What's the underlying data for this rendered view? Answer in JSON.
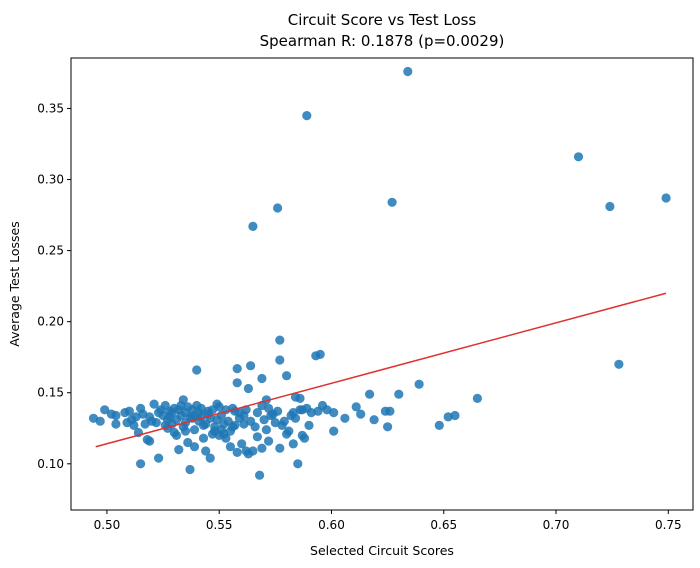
{
  "chart_data": {
    "type": "scatter",
    "title": "Circuit Score vs Test Loss",
    "subtitle": "Spearman R: 0.1878 (p=0.0029)",
    "xlabel": "Selected Circuit Scores",
    "ylabel": "Average Test Losses",
    "xlim": [
      0.484,
      0.761
    ],
    "ylim": [
      0.0675,
      0.3855
    ],
    "xticks": [
      0.5,
      0.55,
      0.6,
      0.65,
      0.7,
      0.75
    ],
    "xtick_labels": [
      "0.50",
      "0.55",
      "0.60",
      "0.65",
      "0.70",
      "0.75"
    ],
    "yticks": [
      0.1,
      0.15,
      0.2,
      0.25,
      0.3,
      0.35
    ],
    "ytick_labels": [
      "0.10",
      "0.15",
      "0.20",
      "0.25",
      "0.30",
      "0.35"
    ],
    "grid": false,
    "point_color": "#1f77b4",
    "trend_color": "#e03131",
    "trend_line": {
      "x": [
        0.495,
        0.749
      ],
      "y": [
        0.112,
        0.22
      ]
    },
    "series": [
      {
        "points": [
          [
            0.634,
            0.376
          ],
          [
            0.589,
            0.345
          ],
          [
            0.71,
            0.316
          ],
          [
            0.749,
            0.287
          ],
          [
            0.627,
            0.284
          ],
          [
            0.724,
            0.281
          ],
          [
            0.576,
            0.28
          ],
          [
            0.565,
            0.267
          ],
          [
            0.577,
            0.187
          ],
          [
            0.595,
            0.177
          ],
          [
            0.593,
            0.176
          ],
          [
            0.577,
            0.173
          ],
          [
            0.728,
            0.17
          ],
          [
            0.564,
            0.169
          ],
          [
            0.558,
            0.167
          ],
          [
            0.54,
            0.166
          ],
          [
            0.58,
            0.162
          ],
          [
            0.639,
            0.156
          ],
          [
            0.569,
            0.16
          ],
          [
            0.558,
            0.157
          ],
          [
            0.563,
            0.153
          ],
          [
            0.617,
            0.149
          ],
          [
            0.63,
            0.149
          ],
          [
            0.584,
            0.147
          ],
          [
            0.665,
            0.146
          ],
          [
            0.571,
            0.145
          ],
          [
            0.586,
            0.146
          ],
          [
            0.534,
            0.145
          ],
          [
            0.521,
            0.142
          ],
          [
            0.549,
            0.142
          ],
          [
            0.569,
            0.141
          ],
          [
            0.596,
            0.141
          ],
          [
            0.611,
            0.14
          ],
          [
            0.626,
            0.137
          ],
          [
            0.586,
            0.138
          ],
          [
            0.51,
            0.137
          ],
          [
            0.515,
            0.139
          ],
          [
            0.499,
            0.138
          ],
          [
            0.502,
            0.135
          ],
          [
            0.508,
            0.136
          ],
          [
            0.511,
            0.131
          ],
          [
            0.519,
            0.133
          ],
          [
            0.525,
            0.134
          ],
          [
            0.529,
            0.136
          ],
          [
            0.532,
            0.138
          ],
          [
            0.538,
            0.132
          ],
          [
            0.541,
            0.136
          ],
          [
            0.545,
            0.135
          ],
          [
            0.549,
            0.131
          ],
          [
            0.552,
            0.128
          ],
          [
            0.557,
            0.137
          ],
          [
            0.561,
            0.134
          ],
          [
            0.566,
            0.126
          ],
          [
            0.57,
            0.131
          ],
          [
            0.574,
            0.135
          ],
          [
            0.578,
            0.127
          ],
          [
            0.582,
            0.134
          ],
          [
            0.587,
            0.138
          ],
          [
            0.591,
            0.136
          ],
          [
            0.601,
            0.136
          ],
          [
            0.606,
            0.132
          ],
          [
            0.613,
            0.135
          ],
          [
            0.619,
            0.131
          ],
          [
            0.624,
            0.137
          ],
          [
            0.494,
            0.132
          ],
          [
            0.497,
            0.13
          ],
          [
            0.504,
            0.128
          ],
          [
            0.512,
            0.127
          ],
          [
            0.514,
            0.122
          ],
          [
            0.518,
            0.117
          ],
          [
            0.522,
            0.129
          ],
          [
            0.527,
            0.125
          ],
          [
            0.531,
            0.12
          ],
          [
            0.535,
            0.123
          ],
          [
            0.536,
            0.115
          ],
          [
            0.539,
            0.112
          ],
          [
            0.543,
            0.118
          ],
          [
            0.544,
            0.109
          ],
          [
            0.547,
            0.121
          ],
          [
            0.551,
            0.124
          ],
          [
            0.553,
            0.118
          ],
          [
            0.555,
            0.112
          ],
          [
            0.558,
            0.108
          ],
          [
            0.56,
            0.114
          ],
          [
            0.562,
            0.109
          ],
          [
            0.567,
            0.119
          ],
          [
            0.569,
            0.111
          ],
          [
            0.571,
            0.124
          ],
          [
            0.575,
            0.129
          ],
          [
            0.577,
            0.111
          ],
          [
            0.58,
            0.121
          ],
          [
            0.583,
            0.114
          ],
          [
            0.587,
            0.12
          ],
          [
            0.59,
            0.127
          ],
          [
            0.601,
            0.123
          ],
          [
            0.625,
            0.126
          ],
          [
            0.648,
            0.127
          ],
          [
            0.652,
            0.133
          ],
          [
            0.655,
            0.134
          ],
          [
            0.519,
            0.116
          ],
          [
            0.532,
            0.11
          ],
          [
            0.515,
            0.1
          ],
          [
            0.523,
            0.104
          ],
          [
            0.537,
            0.096
          ],
          [
            0.546,
            0.104
          ],
          [
            0.568,
            0.092
          ],
          [
            0.585,
            0.1
          ],
          [
            0.524,
            0.138
          ],
          [
            0.526,
            0.141
          ],
          [
            0.528,
            0.137
          ],
          [
            0.53,
            0.139
          ],
          [
            0.533,
            0.141
          ],
          [
            0.536,
            0.14
          ],
          [
            0.538,
            0.138
          ],
          [
            0.54,
            0.141
          ],
          [
            0.542,
            0.139
          ],
          [
            0.547,
            0.138
          ],
          [
            0.55,
            0.14
          ],
          [
            0.553,
            0.138
          ],
          [
            0.516,
            0.135
          ],
          [
            0.52,
            0.13
          ],
          [
            0.523,
            0.136
          ],
          [
            0.527,
            0.131
          ],
          [
            0.529,
            0.128
          ],
          [
            0.533,
            0.134
          ],
          [
            0.535,
            0.129
          ],
          [
            0.537,
            0.133
          ],
          [
            0.541,
            0.13
          ],
          [
            0.543,
            0.127
          ],
          [
            0.546,
            0.132
          ],
          [
            0.548,
            0.126
          ],
          [
            0.551,
            0.134
          ],
          [
            0.554,
            0.13
          ],
          [
            0.556,
            0.126
          ],
          [
            0.559,
            0.132
          ],
          [
            0.561,
            0.128
          ],
          [
            0.564,
            0.13
          ],
          [
            0.573,
            0.134
          ],
          [
            0.579,
            0.13
          ],
          [
            0.584,
            0.132
          ],
          [
            0.594,
            0.137
          ],
          [
            0.504,
            0.134
          ],
          [
            0.509,
            0.129
          ],
          [
            0.513,
            0.133
          ],
          [
            0.517,
            0.128
          ],
          [
            0.526,
            0.127
          ],
          [
            0.528,
            0.133
          ],
          [
            0.53,
            0.122
          ],
          [
            0.534,
            0.126
          ],
          [
            0.539,
            0.124
          ],
          [
            0.542,
            0.133
          ],
          [
            0.544,
            0.128
          ],
          [
            0.548,
            0.123
          ],
          [
            0.55,
            0.12
          ],
          [
            0.552,
            0.121
          ],
          [
            0.555,
            0.123
          ],
          [
            0.557,
            0.127
          ],
          [
            0.563,
            0.107
          ],
          [
            0.565,
            0.109
          ],
          [
            0.572,
            0.116
          ],
          [
            0.581,
            0.123
          ],
          [
            0.588,
            0.118
          ],
          [
            0.531,
            0.131
          ],
          [
            0.535,
            0.136
          ],
          [
            0.539,
            0.134
          ],
          [
            0.545,
            0.137
          ],
          [
            0.556,
            0.139
          ],
          [
            0.559,
            0.136
          ],
          [
            0.562,
            0.138
          ],
          [
            0.567,
            0.136
          ],
          [
            0.572,
            0.139
          ],
          [
            0.576,
            0.137
          ],
          [
            0.583,
            0.136
          ],
          [
            0.589,
            0.139
          ],
          [
            0.598,
            0.138
          ]
        ]
      }
    ]
  }
}
